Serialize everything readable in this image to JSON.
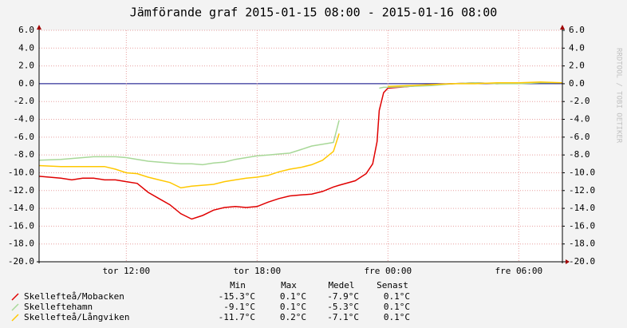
{
  "chart_data": {
    "type": "line",
    "title": "Jämförande graf 2015-01-15 08:00 - 2015-01-16 08:00",
    "side_text": "RRDTOOL / TOBI OETIKER",
    "x": [
      0,
      1,
      1.5,
      2,
      2.5,
      3,
      3.5,
      4,
      4.5,
      5,
      5.5,
      6,
      6.5,
      7,
      7.5,
      8,
      8.5,
      9,
      9.5,
      10,
      10.5,
      11,
      11.5,
      12,
      12.5,
      13,
      13.5,
      13.76,
      14.5,
      15,
      15.3,
      15.5,
      15.6,
      15.8,
      16,
      17,
      18,
      19,
      20,
      21,
      22,
      23,
      24
    ],
    "xlim": [
      0,
      24
    ],
    "xticks": [
      {
        "value": 4,
        "label": "tor 12:00"
      },
      {
        "value": 10,
        "label": "tor 18:00"
      },
      {
        "value": 16,
        "label": "fre 00:00"
      },
      {
        "value": 22,
        "label": "fre 06:00"
      }
    ],
    "ylim": [
      -20,
      6
    ],
    "yticks": [
      {
        "value": 6,
        "label": "6.0"
      },
      {
        "value": 4,
        "label": "4.0"
      },
      {
        "value": 2,
        "label": "2.0"
      },
      {
        "value": 0,
        "label": "0.0"
      },
      {
        "value": -2,
        "label": "-2.0"
      },
      {
        "value": -4,
        "label": "-4.0"
      },
      {
        "value": -6,
        "label": "-6.0"
      },
      {
        "value": -8,
        "label": "-8.0"
      },
      {
        "value": -10,
        "label": "-10.0"
      },
      {
        "value": -12,
        "label": "-12.0"
      },
      {
        "value": -14,
        "label": "-14.0"
      },
      {
        "value": -16,
        "label": "-16.0"
      },
      {
        "value": -18,
        "label": "-18.0"
      },
      {
        "value": -20,
        "label": "-20.0"
      }
    ],
    "y2lim": [
      -20,
      6
    ],
    "y2ticks": [
      {
        "value": 6,
        "label": "6.0"
      },
      {
        "value": 4,
        "label": "4.0"
      },
      {
        "value": 2,
        "label": "2.0"
      },
      {
        "value": 0,
        "label": "0.0"
      },
      {
        "value": -2,
        "label": "-2.0"
      },
      {
        "value": -4,
        "label": "-4.0"
      },
      {
        "value": -6,
        "label": "-6.0"
      },
      {
        "value": -8,
        "label": "-8.0"
      },
      {
        "value": -10,
        "label": "-10.0"
      },
      {
        "value": -12,
        "label": "-12.0"
      },
      {
        "value": -14,
        "label": "-14.0"
      },
      {
        "value": -16,
        "label": "-16.0"
      },
      {
        "value": -18,
        "label": "-18.0"
      },
      {
        "value": -20,
        "label": "-20.0"
      }
    ],
    "grid": true,
    "stat_headers": [
      "Min",
      "Max",
      "Medel",
      "Senast"
    ],
    "series": [
      {
        "name": "Skellefteå/Mobacken",
        "color": "#e00000",
        "stats": [
          "-15.3°C",
          "0.1°C",
          "-7.9°C",
          "0.1°C"
        ],
        "values": [
          -10.4,
          -10.6,
          -10.8,
          -10.6,
          -10.6,
          -10.8,
          -10.8,
          -11.0,
          -11.2,
          -12.2,
          -12.9,
          -13.6,
          -14.6,
          -15.2,
          -14.8,
          -14.2,
          -13.9,
          -13.8,
          -13.9,
          -13.8,
          -13.3,
          -12.9,
          -12.6,
          -12.5,
          -12.4,
          -12.1,
          -11.6,
          -11.4,
          -10.9,
          -10.1,
          -9.0,
          -6.5,
          -3.0,
          -1.0,
          -0.5,
          -0.3,
          -0.1,
          0,
          0.1,
          0,
          0.1,
          0.1,
          0.1
        ]
      },
      {
        "name": "Skelleftehamn",
        "color": "#a8d898",
        "stats": [
          "-9.1°C",
          "0.1°C",
          "-5.3°C",
          "0.1°C"
        ],
        "values": [
          -8.6,
          -8.5,
          -8.4,
          -8.3,
          -8.2,
          -8.2,
          -8.2,
          -8.3,
          -8.5,
          -8.7,
          -8.8,
          -8.9,
          -9.0,
          -9.0,
          -9.1,
          -8.9,
          -8.8,
          -8.5,
          -8.3,
          -8.1,
          -8.0,
          -7.9,
          -7.8,
          -7.4,
          -7.0,
          -6.8,
          -6.6,
          -4.1,
          null,
          null,
          null,
          null,
          -0.5,
          -0.4,
          -0.4,
          -0.3,
          -0.2,
          0,
          0.1,
          0,
          0,
          0.1,
          0.1
        ]
      },
      {
        "name": "Skellefteå/Långviken",
        "color": "#ffc800",
        "stats": [
          "-11.7°C",
          "0.2°C",
          "-7.1°C",
          "0.1°C"
        ],
        "values": [
          -9.2,
          -9.3,
          -9.3,
          -9.3,
          -9.3,
          -9.3,
          -9.6,
          -10.0,
          -10.1,
          -10.5,
          -10.8,
          -11.1,
          -11.7,
          -11.5,
          -11.4,
          -11.3,
          -11.0,
          -10.8,
          -10.6,
          -10.5,
          -10.3,
          -9.9,
          -9.6,
          -9.4,
          -9.1,
          -8.6,
          -7.6,
          -5.6,
          null,
          null,
          null,
          null,
          null,
          null,
          -0.3,
          -0.2,
          -0.1,
          0,
          0,
          0.1,
          0.1,
          0.2,
          0.1
        ]
      }
    ]
  }
}
